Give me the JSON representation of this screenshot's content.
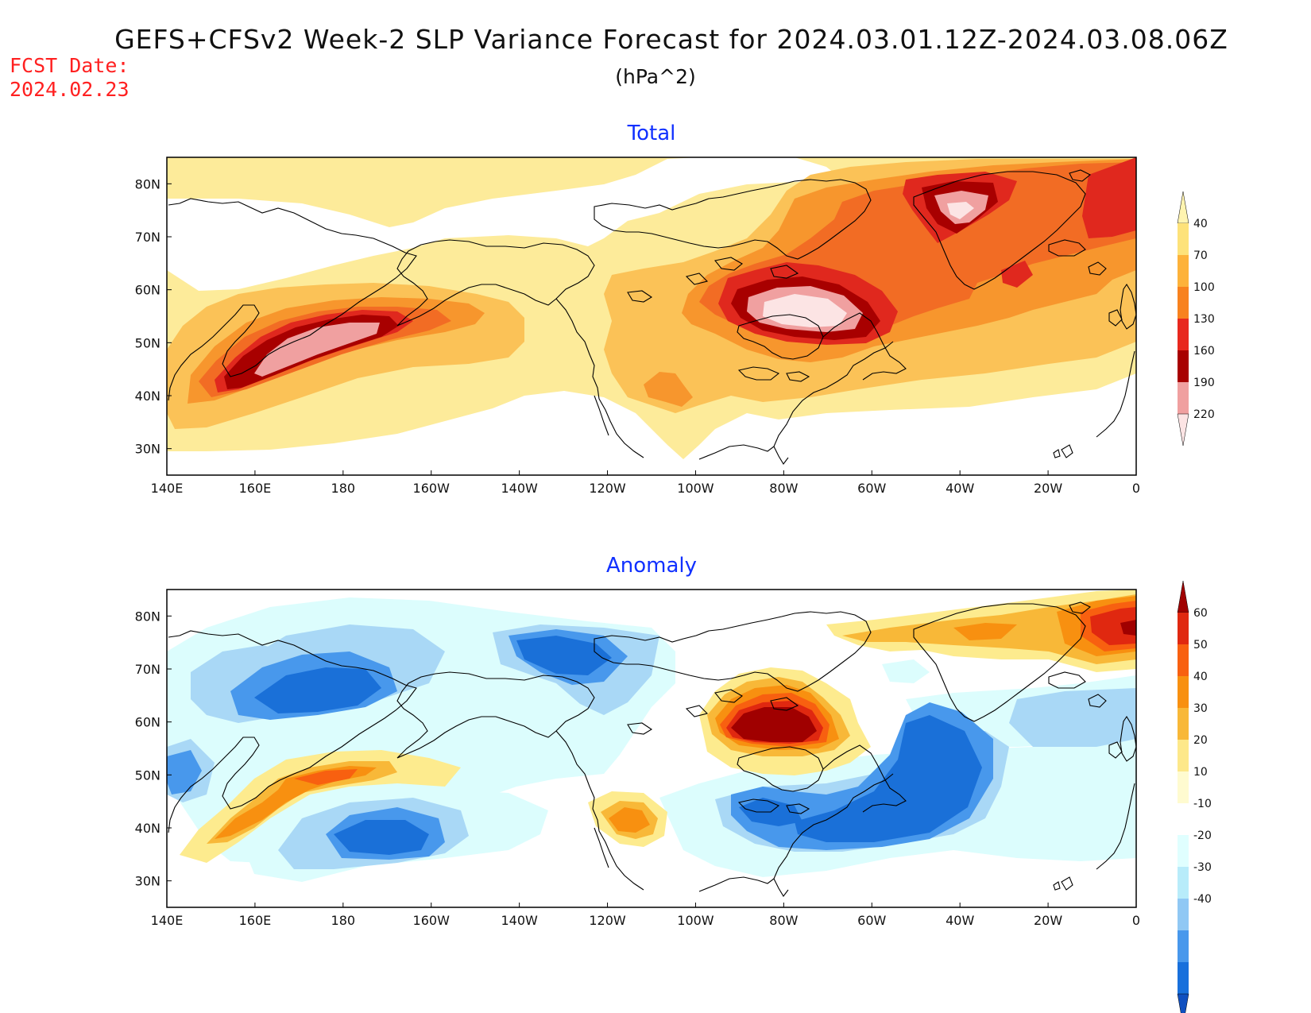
{
  "header": {
    "title": "GEFS+CFSv2 Week-2 SLP Variance Forecast for 2024.03.01.12Z-2024.03.08.06Z",
    "units": "(hPa^2)",
    "fcst_label": "FCST Date:",
    "fcst_date": "2024.02.23"
  },
  "axes": {
    "x_ticks": [
      "140E",
      "160E",
      "180",
      "160W",
      "140W",
      "120W",
      "100W",
      "80W",
      "60W",
      "40W",
      "20W",
      "0"
    ],
    "y_ticks": [
      "80N",
      "70N",
      "60N",
      "50N",
      "40N",
      "30N"
    ]
  },
  "panels": [
    {
      "title": "Total",
      "colorbar": {
        "levels": [
          "40",
          "70",
          "100",
          "130",
          "160",
          "190",
          "220"
        ],
        "colors": [
          "#fff4b0",
          "#fde27a",
          "#fdb23a",
          "#f8821e",
          "#e8281e",
          "#a80000",
          "#f0a0a0",
          "#fce4e4"
        ]
      }
    },
    {
      "title": "Anomaly",
      "colorbar": {
        "levels": [
          "60",
          "50",
          "40",
          "30",
          "20",
          "10",
          "-10",
          "-20",
          "-30",
          "-40"
        ],
        "colors": [
          "#a00000",
          "#e02810",
          "#f86010",
          "#f89010",
          "#f8b838",
          "#fde88a",
          "#fffbd0",
          "#ffffff",
          "#e0ffff",
          "#b8ecfa",
          "#90c8f4",
          "#4898ec",
          "#1870dc",
          "#1050c0"
        ]
      }
    }
  ],
  "chart_data": [
    {
      "type": "heatmap",
      "title": "Total",
      "units": "(hPa^2)",
      "levels": [
        40,
        70,
        100,
        130,
        160,
        190,
        220
      ],
      "lon_range": [
        "140E",
        "0"
      ],
      "lat_range": [
        "25N",
        "85N"
      ],
      "features": [
        {
          "region": "North Pacific (near 180, 50N)",
          "max": 190
        },
        {
          "region": "Hudson Bay / Quebec (75W, 55N)",
          "max": 220
        },
        {
          "region": "Greenland (40W, 72N)",
          "max": 220
        },
        {
          "region": "Norwegian Sea (5W, 72N)",
          "max": 130
        }
      ]
    },
    {
      "type": "heatmap",
      "title": "Anomaly",
      "units": "(hPa^2)",
      "levels": [
        -40,
        -30,
        -20,
        -10,
        10,
        20,
        30,
        40,
        50,
        60
      ],
      "lon_range": [
        "140E",
        "0"
      ],
      "lat_range": [
        "25N",
        "85N"
      ],
      "features": [
        {
          "region": "Hudson Bay (80W, 57N)",
          "max": 60
        },
        {
          "region": "Norwegian Sea (5W, 77N)",
          "max": 60
        },
        {
          "region": "North Pacific (180, 52N)",
          "max": 40
        },
        {
          "region": "SW US (110W, 40N)",
          "max": 40
        },
        {
          "region": "Western Atlantic (45W, 45N)",
          "min": -40
        },
        {
          "region": "Central Pacific (170W, 38N)",
          "min": -40
        },
        {
          "region": "Bering / E Siberia (175E, 65N)",
          "min": -40
        },
        {
          "region": "Arctic N of Alaska (130W, 72N)",
          "min": -40
        }
      ]
    }
  ]
}
